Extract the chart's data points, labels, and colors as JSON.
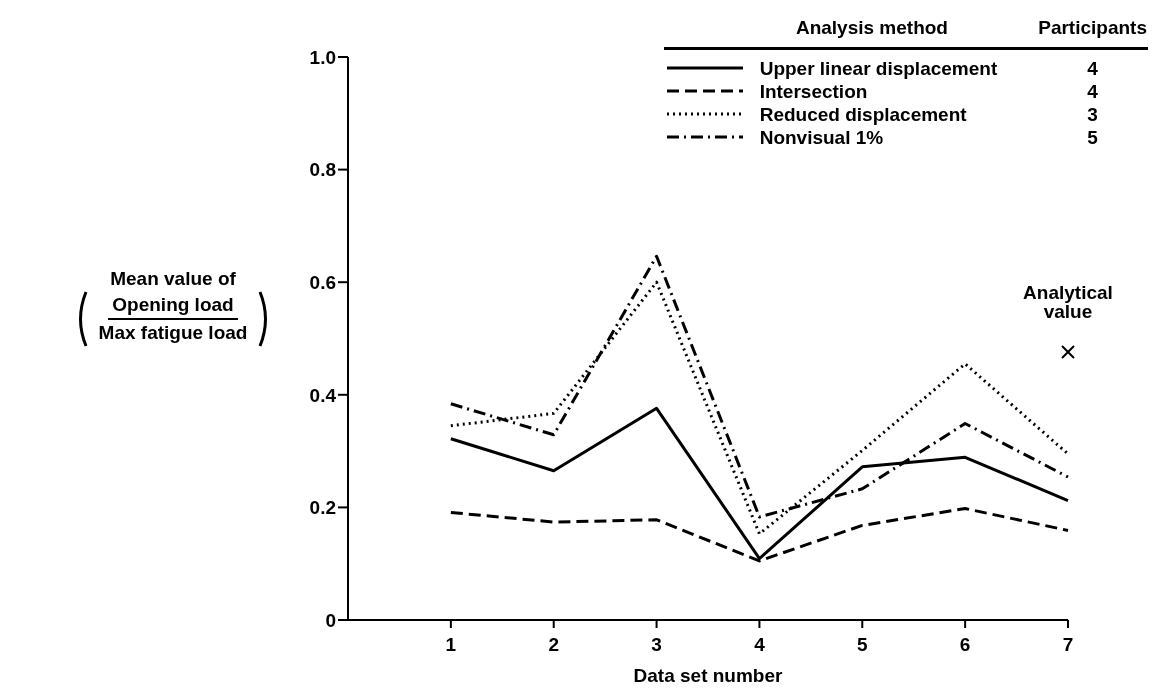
{
  "chart_data": {
    "type": "line",
    "xlabel": "Data set number",
    "ylabel": "Mean value of",
    "legend_title": "Analysis method",
    "annotations": [
      "Participants",
      "4",
      "4",
      "3",
      "5",
      "Opening load",
      "Max fatigue load"
    ],
    "x": [
      1,
      2,
      3,
      4,
      5,
      6,
      7
    ],
    "xlim": [
      0,
      7
    ],
    "xticks": [
      1,
      2,
      3,
      4,
      5,
      6,
      7
    ],
    "ylim": [
      0,
      1
    ],
    "yticks": [
      0,
      0.2,
      0.4,
      0.6,
      0.8,
      {
        "value": 1,
        "label": "1.0"
      }
    ],
    "grid": false,
    "legend": "top right",
    "marker": "none",
    "series": [
      {
        "name": "Upper linear displacement",
        "color": "#000000",
        "line_style": "solid",
        "values": [
          0.322,
          0.265,
          0.376,
          0.109,
          0.272,
          0.289,
          0.212
        ]
      },
      {
        "name": "Intersection",
        "color": "#000000",
        "line_style": "dashed",
        "values": [
          0.191,
          0.174,
          0.178,
          0.105,
          0.168,
          0.198,
          0.159
        ]
      },
      {
        "name": "Reduced displacement",
        "color": "#000000",
        "line_style": "dotted",
        "values": [
          0.345,
          0.367,
          0.6,
          0.153,
          0.301,
          0.455,
          0.295
        ]
      },
      {
        "name": "Nonvisual 1%",
        "color": "#000000",
        "line_style": "dashdot",
        "values": [
          0.384,
          0.329,
          0.646,
          0.183,
          0.233,
          0.349,
          0.254
        ]
      },
      {
        "name": "Analytical value",
        "type": "scatter",
        "marker": "cross",
        "color": "#000000",
        "x": [
          7
        ],
        "values": [
          0.476
        ]
      }
    ]
  }
}
